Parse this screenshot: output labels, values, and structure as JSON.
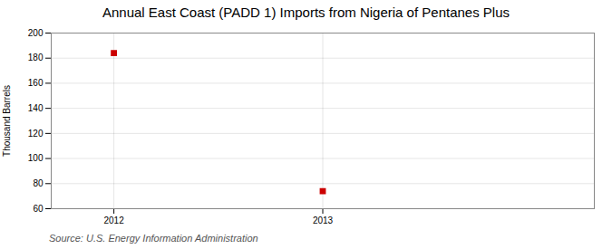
{
  "chart_data": {
    "type": "scatter",
    "title": "Annual East Coast (PADD 1) Imports from Nigeria of Pentanes Plus",
    "ylabel": "Thousand Barrels",
    "source": "Source: U.S. Energy Information Administration",
    "x": [
      2012,
      2013
    ],
    "values": [
      184,
      74
    ],
    "color": "#cc0000",
    "marker": "square",
    "xlim": [
      2011.7,
      2014.3
    ],
    "xticks": [
      2012,
      2013
    ],
    "ylim": [
      60,
      200
    ],
    "yticks": [
      60,
      80,
      100,
      120,
      140,
      160,
      180,
      200
    ],
    "grid": true
  }
}
